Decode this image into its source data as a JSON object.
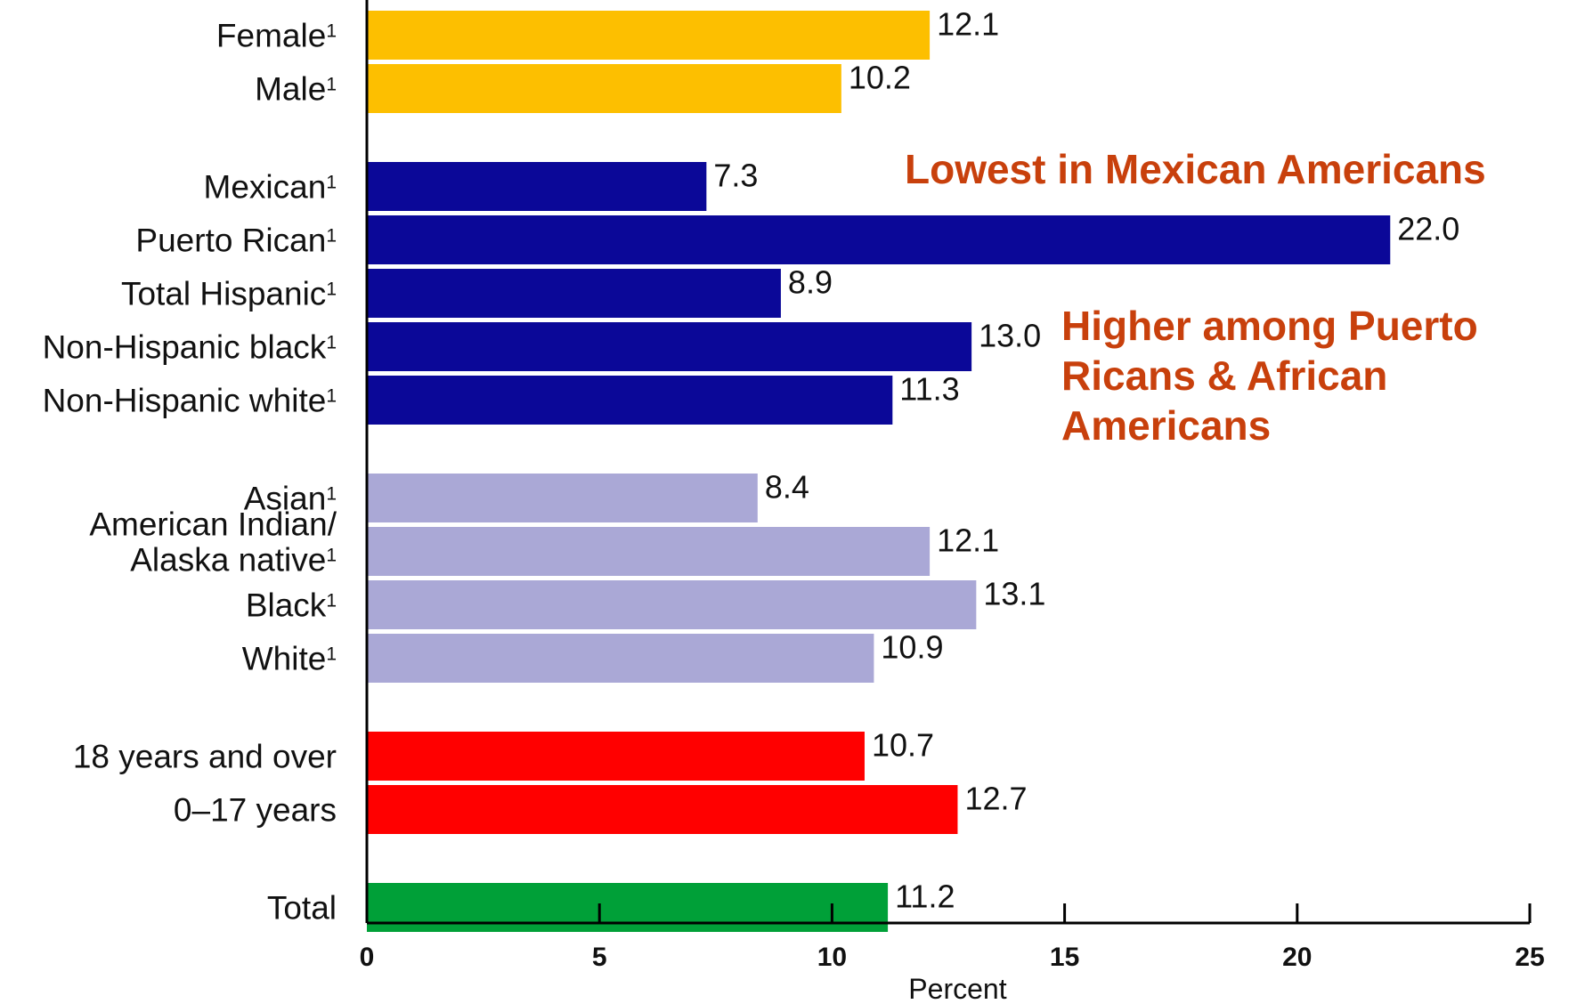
{
  "chart_data": {
    "type": "bar",
    "orientation": "horizontal",
    "xlabel": "Percent",
    "xlim": [
      0,
      25
    ],
    "xticks": [
      0,
      5,
      10,
      15,
      20,
      25
    ],
    "grid": false,
    "footnote_marker": "1",
    "groups": [
      {
        "color": "#fdbf00",
        "categories": [
          {
            "label": "Female",
            "footnote": true,
            "value": 12.1,
            "value_label": "12.1"
          },
          {
            "label": "Male",
            "footnote": true,
            "value": 10.2,
            "value_label": "10.2"
          }
        ]
      },
      {
        "color": "#0b0898",
        "categories": [
          {
            "label": "Mexican",
            "footnote": true,
            "value": 7.3,
            "value_label": "7.3"
          },
          {
            "label": "Puerto Rican",
            "footnote": true,
            "value": 22.0,
            "value_label": "22.0"
          },
          {
            "label": "Total Hispanic",
            "footnote": true,
            "value": 8.9,
            "value_label": "8.9"
          },
          {
            "label": "Non-Hispanic black",
            "footnote": true,
            "value": 13.0,
            "value_label": "13.0"
          },
          {
            "label": "Non-Hispanic white",
            "footnote": true,
            "value": 11.3,
            "value_label": "11.3"
          }
        ]
      },
      {
        "color": "#aaa8d6",
        "categories": [
          {
            "label": "Asian",
            "footnote": true,
            "value": 8.4,
            "value_label": "8.4"
          },
          {
            "label": "American Indian/ Alaska native",
            "label_lines": [
              "American Indian/",
              "Alaska native"
            ],
            "footnote": true,
            "value": 12.1,
            "value_label": "12.1"
          },
          {
            "label": "Black",
            "footnote": true,
            "value": 13.1,
            "value_label": "13.1"
          },
          {
            "label": "White",
            "footnote": true,
            "value": 10.9,
            "value_label": "10.9"
          }
        ]
      },
      {
        "color": "#ff0000",
        "categories": [
          {
            "label": "18 years and over",
            "footnote": false,
            "value": 10.7,
            "value_label": "10.7"
          },
          {
            "label": "0–17 years",
            "footnote": false,
            "value": 12.7,
            "value_label": "12.7"
          }
        ]
      },
      {
        "color": "#00a038",
        "categories": [
          {
            "label": "Total",
            "footnote": false,
            "value": 11.2,
            "value_label": "11.2"
          }
        ]
      }
    ]
  },
  "annotations": {
    "mexican": {
      "lines": [
        "Lowest in Mexican Americans"
      ]
    },
    "higher": {
      "lines": [
        "Higher among Puerto",
        "Ricans & African",
        "Americans"
      ]
    },
    "color": "#c8400c"
  }
}
